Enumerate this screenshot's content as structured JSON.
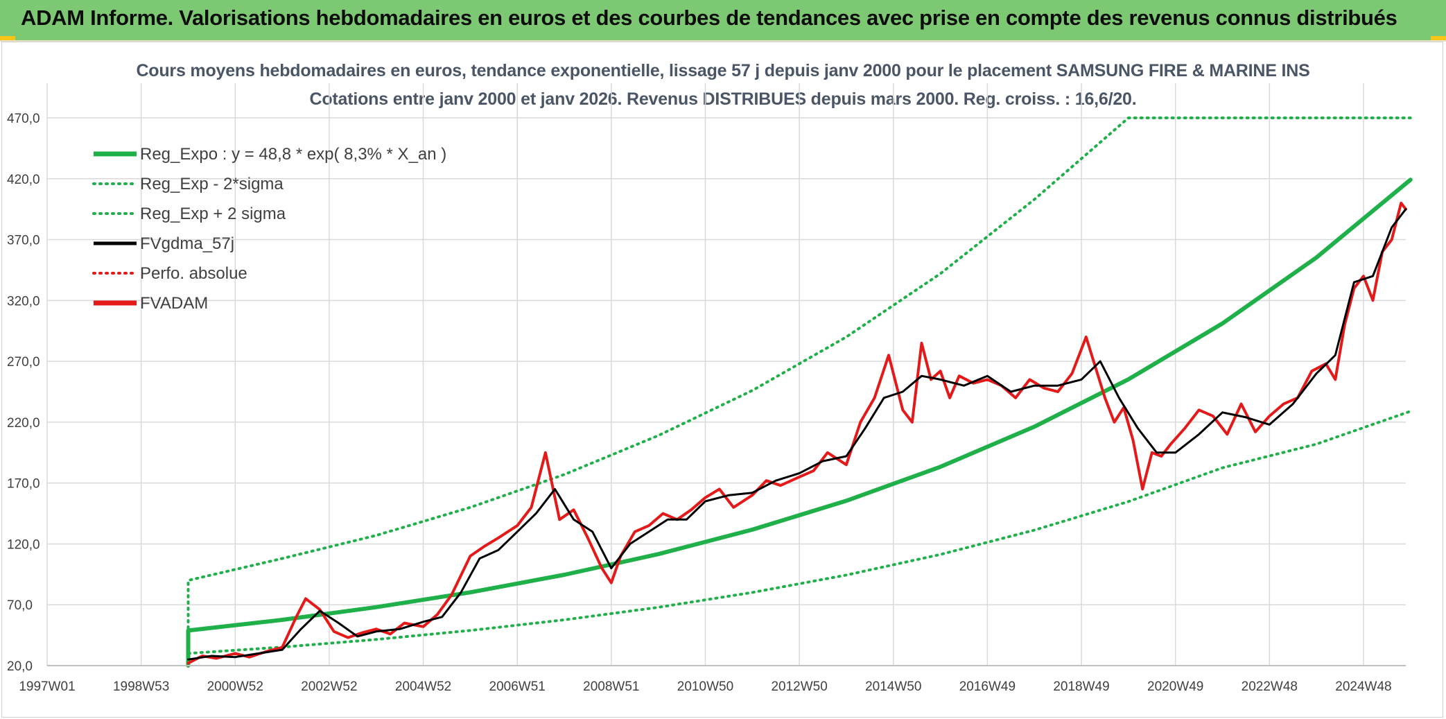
{
  "banner": {
    "title": "ADAM Informe. Valorisations hebdomadaires en euros et des courbes de tendances avec prise en compte des revenus connus distribués"
  },
  "colors": {
    "banner_bg": "#7dc873",
    "reg_expo": "#1fb04a",
    "sigma": "#1fb04a",
    "gdma": "#000000",
    "perfo": "#e41a1a",
    "fvadam": "#e41a1a",
    "grid": "#d9d9d9"
  },
  "chart_data": {
    "type": "line",
    "title": "Cours moyens hebdomadaires en euros, tendance exponentielle, lissage 57 j depuis janv 2000 pour le placement SAMSUNG FIRE & MARINE INS",
    "subtitle": "Cotations entre janv 2000 et janv 2026. Revenus DISTRIBUES depuis mars 2000. Reg. croiss. : 16,6/20.",
    "xlabel": "",
    "ylabel": "",
    "xlim": [
      1997.0,
      2025.9
    ],
    "ylim": [
      20,
      470
    ],
    "grid": true,
    "y_ticks": [
      "470,0",
      "420,0",
      "370,0",
      "320,0",
      "270,0",
      "220,0",
      "170,0",
      "120,0",
      "70,0",
      "20,0"
    ],
    "y_tick_values": [
      470,
      420,
      370,
      320,
      270,
      220,
      170,
      120,
      70,
      20
    ],
    "x_ticks": [
      {
        "label": "1997W01",
        "t": 1997.0
      },
      {
        "label": "1998W53",
        "t": 1999.0
      },
      {
        "label": "2000W52",
        "t": 2001.0
      },
      {
        "label": "2002W52",
        "t": 2003.0
      },
      {
        "label": "2004W52",
        "t": 2005.0
      },
      {
        "label": "2006W51",
        "t": 2007.0
      },
      {
        "label": "2008W51",
        "t": 2009.0
      },
      {
        "label": "2010W50",
        "t": 2011.0
      },
      {
        "label": "2012W50",
        "t": 2013.0
      },
      {
        "label": "2014W50",
        "t": 2015.0
      },
      {
        "label": "2016W49",
        "t": 2017.0
      },
      {
        "label": "2018W49",
        "t": 2019.0
      },
      {
        "label": "2020W49",
        "t": 2021.0
      },
      {
        "label": "2022W48",
        "t": 2023.0
      },
      {
        "label": "2024W48",
        "t": 2025.0
      }
    ],
    "legend": [
      {
        "name": "Reg_Expo : y = 48,8 * exp( 8,3% *  X_an )",
        "style": "solid-thick",
        "color": "#1fb04a"
      },
      {
        "name": "Reg_Exp - 2*sigma",
        "style": "dotted",
        "color": "#1fb04a"
      },
      {
        "name": "Reg_Exp + 2 sigma",
        "style": "dotted",
        "color": "#1fb04a"
      },
      {
        "name": "FVgdma_57j",
        "style": "solid",
        "color": "#000000"
      },
      {
        "name": "Perfo. absolue",
        "style": "dotted",
        "color": "#e41a1a"
      },
      {
        "name": "FVADAM",
        "style": "solid-thick",
        "color": "#e41a1a"
      }
    ],
    "series": [
      {
        "name": "Reg_Expo",
        "x": [
          2000.0,
          2002.0,
          2004.0,
          2006.0,
          2008.0,
          2010.0,
          2012.0,
          2014.0,
          2016.0,
          2018.0,
          2020.0,
          2022.0,
          2024.0,
          2026.0
        ],
        "values": [
          48.8,
          57.6,
          68.0,
          80.2,
          94.6,
          111.6,
          131.7,
          155.4,
          183.3,
          216.3,
          255.2,
          301.1,
          355.3,
          419.2
        ]
      },
      {
        "name": "Reg_Exp - 2*sigma",
        "x": [
          2000.0,
          2002.0,
          2004.0,
          2006.0,
          2008.0,
          2010.0,
          2012.0,
          2014.0,
          2016.0,
          2018.0,
          2020.0,
          2022.0,
          2024.0,
          2026.0
        ],
        "values": [
          30.0,
          35.2,
          41.5,
          48.9,
          57.6,
          67.9,
          80.1,
          94.4,
          111.3,
          131.3,
          154.8,
          182.5,
          202.0,
          229.0
        ]
      },
      {
        "name": "Reg_Exp + 2 sigma",
        "x": [
          2000.0,
          2002.0,
          2004.0,
          2006.0,
          2008.0,
          2010.0,
          2012.0,
          2014.0,
          2016.0,
          2018.0,
          2020.0,
          2022.0,
          2024.0,
          2026.0
        ],
        "values": [
          90,
          108,
          127,
          150,
          177,
          209,
          246,
          290,
          342,
          403,
          470,
          470,
          470,
          470
        ]
      },
      {
        "name": "FVgdma_57j",
        "x": [
          2000.0,
          2000.5,
          2001.0,
          2001.5,
          2002.0,
          2002.4,
          2002.8,
          2003.2,
          2003.6,
          2004.0,
          2004.5,
          2005.0,
          2005.4,
          2005.8,
          2006.2,
          2006.6,
          2007.0,
          2007.4,
          2007.8,
          2008.2,
          2008.6,
          2009.0,
          2009.4,
          2009.8,
          2010.2,
          2010.6,
          2011.0,
          2011.5,
          2012.0,
          2012.5,
          2013.0,
          2013.5,
          2014.0,
          2014.4,
          2014.8,
          2015.2,
          2015.6,
          2016.0,
          2016.5,
          2017.0,
          2017.5,
          2018.0,
          2018.5,
          2019.0,
          2019.4,
          2019.8,
          2020.2,
          2020.6,
          2021.0,
          2021.5,
          2022.0,
          2022.5,
          2023.0,
          2023.5,
          2024.0,
          2024.4,
          2024.8,
          2025.2,
          2025.6,
          2025.9
        ],
        "values": [
          25,
          28,
          27,
          30,
          33,
          50,
          65,
          55,
          44,
          48,
          50,
          56,
          60,
          80,
          108,
          115,
          130,
          145,
          165,
          140,
          130,
          100,
          120,
          130,
          140,
          140,
          155,
          160,
          162,
          172,
          178,
          188,
          192,
          215,
          240,
          245,
          258,
          255,
          250,
          258,
          245,
          250,
          250,
          255,
          270,
          240,
          215,
          195,
          195,
          210,
          228,
          224,
          218,
          235,
          260,
          275,
          335,
          340,
          380,
          395
        ]
      },
      {
        "name": "FVADAM",
        "x": [
          2000.0,
          2000.3,
          2000.6,
          2001.0,
          2001.3,
          2001.7,
          2002.0,
          2002.3,
          2002.5,
          2002.8,
          2003.1,
          2003.4,
          2003.7,
          2004.0,
          2004.3,
          2004.6,
          2005.0,
          2005.3,
          2005.6,
          2006.0,
          2006.3,
          2006.6,
          2007.0,
          2007.3,
          2007.6,
          2007.9,
          2008.2,
          2008.5,
          2008.8,
          2009.0,
          2009.2,
          2009.5,
          2009.8,
          2010.1,
          2010.4,
          2010.7,
          2011.0,
          2011.3,
          2011.6,
          2012.0,
          2012.3,
          2012.6,
          2013.0,
          2013.3,
          2013.6,
          2014.0,
          2014.3,
          2014.6,
          2014.9,
          2015.2,
          2015.4,
          2015.6,
          2015.8,
          2016.0,
          2016.2,
          2016.4,
          2016.7,
          2017.0,
          2017.3,
          2017.6,
          2017.9,
          2018.2,
          2018.5,
          2018.8,
          2019.1,
          2019.3,
          2019.5,
          2019.7,
          2019.9,
          2020.1,
          2020.3,
          2020.5,
          2020.7,
          2020.9,
          2021.2,
          2021.5,
          2021.8,
          2022.1,
          2022.4,
          2022.7,
          2023.0,
          2023.3,
          2023.6,
          2023.9,
          2024.2,
          2024.4,
          2024.6,
          2024.8,
          2025.0,
          2025.2,
          2025.4,
          2025.6,
          2025.8,
          2025.9
        ],
        "values": [
          22,
          28,
          26,
          30,
          27,
          32,
          35,
          60,
          75,
          66,
          48,
          43,
          47,
          50,
          46,
          55,
          52,
          62,
          78,
          110,
          118,
          125,
          135,
          150,
          195,
          140,
          148,
          125,
          100,
          88,
          110,
          130,
          135,
          145,
          140,
          148,
          158,
          165,
          150,
          160,
          172,
          168,
          175,
          180,
          195,
          185,
          220,
          240,
          275,
          230,
          220,
          285,
          255,
          262,
          240,
          258,
          252,
          255,
          250,
          240,
          255,
          248,
          245,
          260,
          290,
          265,
          240,
          220,
          232,
          205,
          165,
          195,
          192,
          202,
          215,
          230,
          225,
          210,
          235,
          212,
          225,
          235,
          240,
          262,
          268,
          255,
          300,
          330,
          340,
          320,
          360,
          370,
          400,
          395
        ]
      }
    ]
  }
}
